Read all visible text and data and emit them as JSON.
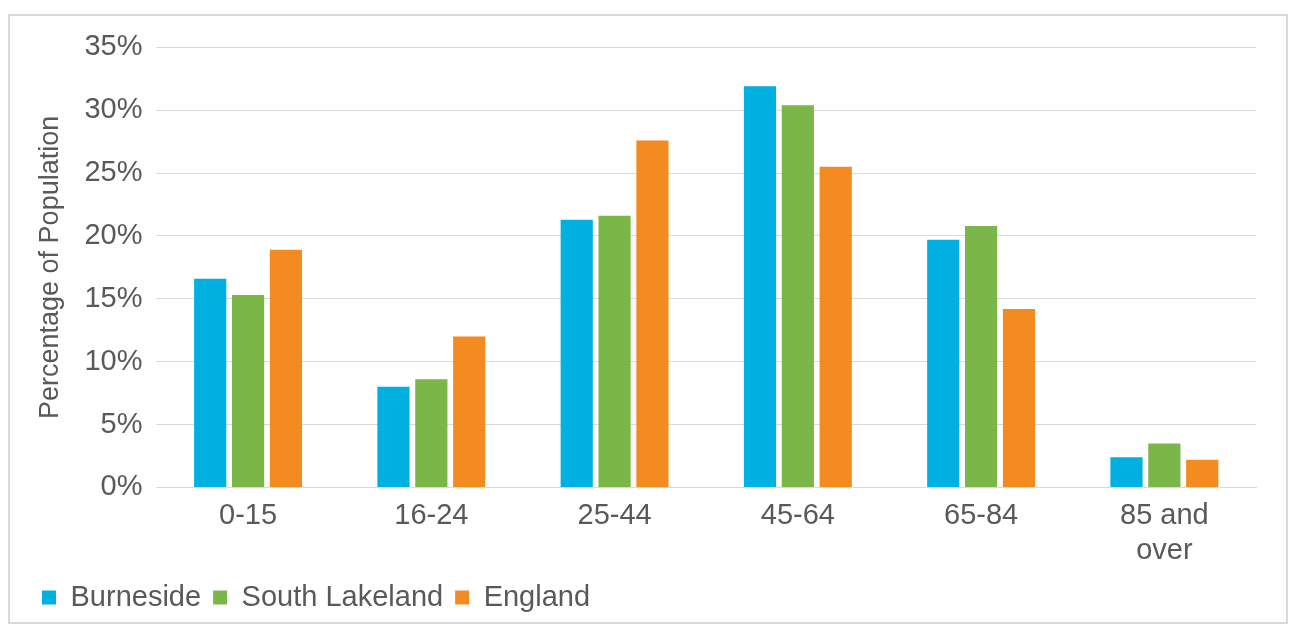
{
  "chart_data": {
    "type": "bar",
    "ylabel": "Percentage of Population",
    "categories": [
      "0-15",
      "16-24",
      "25-44",
      "45-64",
      "65-84",
      "85 and over"
    ],
    "series": [
      {
        "name": "Burneside",
        "color": "#00b0e0",
        "values": [
          16.6,
          8.0,
          21.3,
          31.9,
          19.7,
          2.4
        ]
      },
      {
        "name": "South Lakeland",
        "color": "#7ab648",
        "values": [
          15.3,
          8.6,
          21.6,
          30.4,
          20.8,
          3.5
        ]
      },
      {
        "name": "England",
        "color": "#f38b20",
        "values": [
          18.9,
          12.0,
          27.6,
          25.5,
          14.2,
          2.2
        ]
      }
    ],
    "ylim": [
      0,
      35
    ],
    "yticks": [
      {
        "value": 0,
        "label": "0%"
      },
      {
        "value": 5,
        "label": "5%"
      },
      {
        "value": 10,
        "label": "10%"
      },
      {
        "value": 15,
        "label": "15%"
      },
      {
        "value": 20,
        "label": "20%"
      },
      {
        "value": 25,
        "label": "25%"
      },
      {
        "value": 30,
        "label": "30%"
      },
      {
        "value": 35,
        "label": "35%"
      }
    ],
    "grid": "y",
    "legend": "bottom"
  }
}
